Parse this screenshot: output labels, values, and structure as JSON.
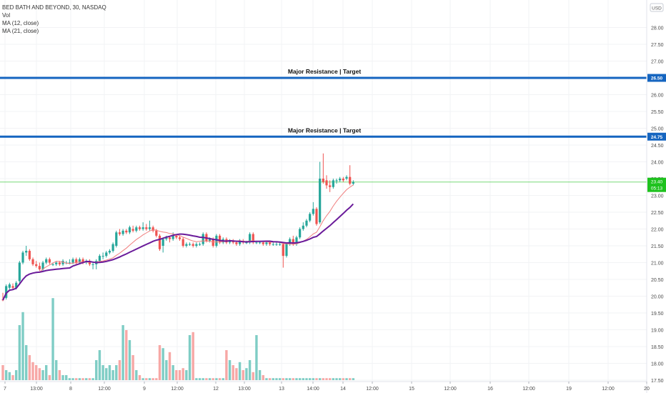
{
  "legend": {
    "symbol": "BED BATH AND BEYOND, 30, NASDAQ",
    "vol": "Vol",
    "ma12": "MA (12, close)",
    "ma21": "MA (21, close)"
  },
  "currency": "USD",
  "colors": {
    "up": "#26a69a",
    "down": "#ef5350",
    "vol_up": "#7fcdc5",
    "vol_down": "#f7a8a6",
    "ma12": "#f07e7e",
    "ma21": "#6a1b9a",
    "resistance": "#1565c0",
    "price_badge": "#1ec21e",
    "grid": "#f2f3f5",
    "axis_text": "#4a4a4a"
  },
  "chart_data": {
    "type": "candlestick",
    "y_axis": {
      "range": [
        17.5,
        28.5
      ],
      "ticks": [
        "17.50",
        "18.00",
        "18.50",
        "19.00",
        "19.50",
        "20.00",
        "20.50",
        "21.00",
        "21.50",
        "22.00",
        "22.50",
        "23.00",
        "23.50",
        "24.00",
        "24.50",
        "25.00",
        "25.50",
        "26.00",
        "26.50",
        "27.00",
        "27.50",
        "28.00"
      ]
    },
    "x_axis": {
      "labels": [
        "7",
        "13:00",
        "8",
        "12:00",
        "9",
        "12:00",
        "12",
        "13:00",
        "13",
        "14:00",
        "14",
        "12:00",
        "15",
        "12:00",
        "16",
        "12:00",
        "19",
        "12:00",
        "20"
      ]
    },
    "resistance_lines": [
      {
        "price": 26.5,
        "label": "Major Resistance | Target",
        "price_label": "26.50"
      },
      {
        "price": 24.75,
        "label": "Major Resistance | Target",
        "price_label": "24.75"
      }
    ],
    "last_price": {
      "price": 23.4,
      "price_label": "23.40",
      "countdown": "05:13"
    },
    "candles": [
      [
        19.9,
        19.88,
        20.1,
        19.85
      ],
      [
        19.95,
        20.3,
        20.35,
        19.9
      ],
      [
        20.25,
        20.35,
        20.4,
        20.2
      ],
      [
        20.3,
        20.25,
        20.38,
        20.2
      ],
      [
        20.25,
        20.4,
        20.45,
        20.2
      ],
      [
        20.45,
        21.0,
        21.05,
        20.4
      ],
      [
        21.0,
        21.3,
        21.35,
        20.95
      ],
      [
        21.3,
        21.35,
        21.5,
        21.2
      ],
      [
        21.35,
        21.1,
        21.4,
        21.05
      ],
      [
        21.1,
        20.95,
        21.15,
        20.9
      ],
      [
        20.95,
        20.9,
        21.05,
        20.85
      ],
      [
        20.9,
        20.8,
        21.0,
        20.75
      ],
      [
        20.8,
        21.0,
        21.05,
        20.75
      ],
      [
        21.0,
        21.1,
        21.15,
        20.95
      ],
      [
        21.1,
        21.0,
        21.15,
        20.95
      ],
      [
        20.95,
        20.95,
        21.0,
        20.9
      ],
      [
        20.95,
        21.0,
        21.05,
        20.9
      ],
      [
        21.0,
        20.95,
        21.05,
        20.9
      ],
      [
        20.95,
        21.05,
        21.1,
        20.9
      ],
      [
        21.0,
        21.0,
        21.05,
        20.95
      ],
      [
        21.0,
        21.0,
        21.1,
        20.95
      ],
      [
        21.0,
        21.1,
        21.15,
        20.95
      ],
      [
        21.1,
        21.0,
        21.15,
        20.95
      ],
      [
        21.0,
        21.1,
        21.15,
        20.95
      ],
      [
        21.1,
        21.0,
        21.15,
        20.95
      ],
      [
        21.0,
        21.05,
        21.1,
        20.95
      ],
      [
        21.05,
        20.95,
        21.1,
        20.9
      ],
      [
        20.95,
        20.95,
        21.0,
        20.8
      ],
      [
        20.95,
        21.05,
        21.1,
        20.8
      ],
      [
        21.05,
        21.2,
        21.25,
        21.0
      ],
      [
        21.2,
        21.2,
        21.3,
        21.1
      ],
      [
        21.2,
        21.3,
        21.35,
        21.15
      ],
      [
        21.3,
        21.35,
        21.4,
        21.25
      ],
      [
        21.35,
        21.55,
        21.6,
        21.3
      ],
      [
        21.5,
        21.9,
        21.95,
        21.45
      ],
      [
        21.9,
        21.85,
        22.0,
        21.8
      ],
      [
        21.85,
        21.95,
        22.0,
        21.8
      ],
      [
        21.95,
        21.9,
        22.0,
        21.85
      ],
      [
        21.9,
        22.05,
        22.1,
        21.85
      ],
      [
        22.0,
        21.95,
        22.1,
        21.9
      ],
      [
        21.95,
        22.05,
        22.1,
        21.9
      ],
      [
        22.05,
        22.0,
        22.1,
        21.95
      ],
      [
        22.0,
        22.05,
        22.2,
        21.95
      ],
      [
        22.05,
        22.0,
        22.15,
        21.95
      ],
      [
        22.0,
        22.05,
        22.25,
        21.95
      ],
      [
        22.05,
        21.95,
        22.1,
        21.9
      ],
      [
        21.95,
        21.8,
        22.0,
        21.75
      ],
      [
        21.8,
        21.4,
        21.85,
        21.35
      ],
      [
        21.5,
        21.7,
        21.75,
        21.3
      ],
      [
        21.7,
        21.75,
        21.8,
        21.65
      ],
      [
        21.75,
        21.7,
        21.8,
        21.6
      ],
      [
        21.7,
        21.8,
        21.9,
        21.65
      ],
      [
        21.8,
        21.75,
        21.85,
        21.7
      ],
      [
        21.75,
        21.7,
        21.8,
        21.65
      ],
      [
        21.7,
        21.5,
        21.75,
        21.45
      ],
      [
        21.5,
        21.55,
        21.6,
        21.45
      ],
      [
        21.55,
        21.55,
        21.6,
        21.5
      ],
      [
        21.55,
        21.5,
        21.6,
        21.45
      ],
      [
        21.5,
        21.55,
        21.6,
        21.45
      ],
      [
        21.55,
        21.55,
        21.6,
        21.5
      ],
      [
        21.55,
        21.85,
        21.9,
        21.5
      ],
      [
        21.85,
        21.65,
        21.9,
        21.6
      ],
      [
        21.65,
        21.7,
        21.75,
        21.6
      ],
      [
        21.7,
        21.5,
        21.75,
        21.45
      ],
      [
        21.5,
        21.8,
        21.85,
        21.45
      ],
      [
        21.8,
        21.6,
        21.85,
        21.55
      ],
      [
        21.6,
        21.7,
        21.75,
        21.55
      ],
      [
        21.7,
        21.6,
        21.75,
        21.55
      ],
      [
        21.6,
        21.65,
        21.7,
        21.55
      ],
      [
        21.65,
        21.6,
        21.7,
        21.55
      ],
      [
        21.6,
        21.55,
        21.65,
        21.5
      ],
      [
        21.55,
        21.65,
        21.7,
        21.5
      ],
      [
        21.65,
        21.6,
        21.7,
        21.55
      ],
      [
        21.6,
        21.6,
        21.65,
        21.55
      ],
      [
        21.6,
        21.85,
        21.9,
        21.55
      ],
      [
        21.85,
        21.6,
        21.9,
        21.55
      ],
      [
        21.6,
        21.6,
        21.65,
        21.55
      ],
      [
        21.6,
        21.6,
        21.65,
        21.55
      ],
      [
        21.6,
        21.55,
        21.65,
        21.5
      ],
      [
        21.55,
        21.6,
        21.65,
        21.5
      ],
      [
        21.6,
        21.55,
        21.65,
        21.5
      ],
      [
        21.55,
        21.55,
        21.6,
        21.5
      ],
      [
        21.55,
        21.55,
        21.6,
        21.5
      ],
      [
        21.55,
        21.55,
        21.6,
        21.5
      ],
      [
        21.55,
        21.2,
        21.6,
        20.85
      ],
      [
        21.2,
        21.55,
        21.6,
        21.15
      ],
      [
        21.55,
        21.7,
        21.75,
        21.5
      ],
      [
        21.7,
        21.55,
        21.8,
        21.5
      ],
      [
        21.55,
        21.75,
        21.8,
        21.5
      ],
      [
        21.75,
        22.0,
        22.05,
        21.7
      ],
      [
        22.0,
        22.1,
        22.2,
        21.95
      ],
      [
        22.1,
        22.25,
        22.3,
        22.05
      ],
      [
        22.25,
        22.45,
        22.5,
        22.2
      ],
      [
        22.45,
        22.6,
        22.8,
        22.4
      ],
      [
        22.6,
        22.15,
        22.65,
        22.1
      ],
      [
        22.2,
        23.5,
        24.0,
        22.15
      ],
      [
        23.5,
        23.4,
        24.25,
        23.35
      ],
      [
        23.45,
        23.3,
        23.6,
        23.2
      ],
      [
        23.3,
        23.25,
        23.45,
        23.1
      ],
      [
        23.25,
        23.45,
        23.5,
        23.2
      ],
      [
        23.45,
        23.45,
        23.5,
        23.35
      ],
      [
        23.45,
        23.5,
        23.55,
        23.4
      ],
      [
        23.5,
        23.45,
        23.55,
        23.4
      ],
      [
        23.5,
        23.55,
        23.6,
        23.45
      ],
      [
        23.55,
        23.35,
        23.9,
        23.3
      ],
      [
        23.35,
        23.4,
        23.45,
        23.3
      ]
    ],
    "volumes": [
      0.15,
      0.1,
      0.08,
      0.05,
      0.1,
      0.55,
      0.68,
      0.35,
      0.25,
      0.18,
      0.15,
      0.12,
      0.1,
      0.15,
      0.05,
      0.82,
      0.2,
      0.1,
      0.05,
      0.05,
      0.02,
      0.02,
      0.02,
      0.02,
      0.02,
      0.02,
      0.02,
      0.02,
      0.2,
      0.3,
      0.15,
      0.12,
      0.15,
      0.1,
      0.15,
      0.2,
      0.55,
      0.5,
      0.4,
      0.25,
      0.1,
      0.05,
      0.02,
      0.02,
      0.02,
      0.02,
      0.02,
      0.35,
      0.32,
      0.2,
      0.28,
      0.15,
      0.1,
      0.1,
      0.12,
      0.1,
      0.45,
      0.48,
      0.02,
      0.02,
      0.02,
      0.02,
      0.02,
      0.02,
      0.02,
      0.02,
      0.02,
      0.3,
      0.2,
      0.15,
      0.12,
      0.18,
      0.1,
      0.12,
      0.2,
      0.08,
      0.45,
      0.1,
      0.05,
      0.02,
      0.02,
      0.02,
      0.02,
      0.02,
      0.02,
      0.02,
      0.02,
      0.02,
      0.02,
      0.02,
      0.02,
      0.02,
      0.02,
      0.02,
      0.02,
      0.02,
      0.02,
      0.02,
      0.02,
      0.02,
      0.02,
      0.02,
      0.02,
      0.02,
      0.02,
      0.02
    ]
  }
}
